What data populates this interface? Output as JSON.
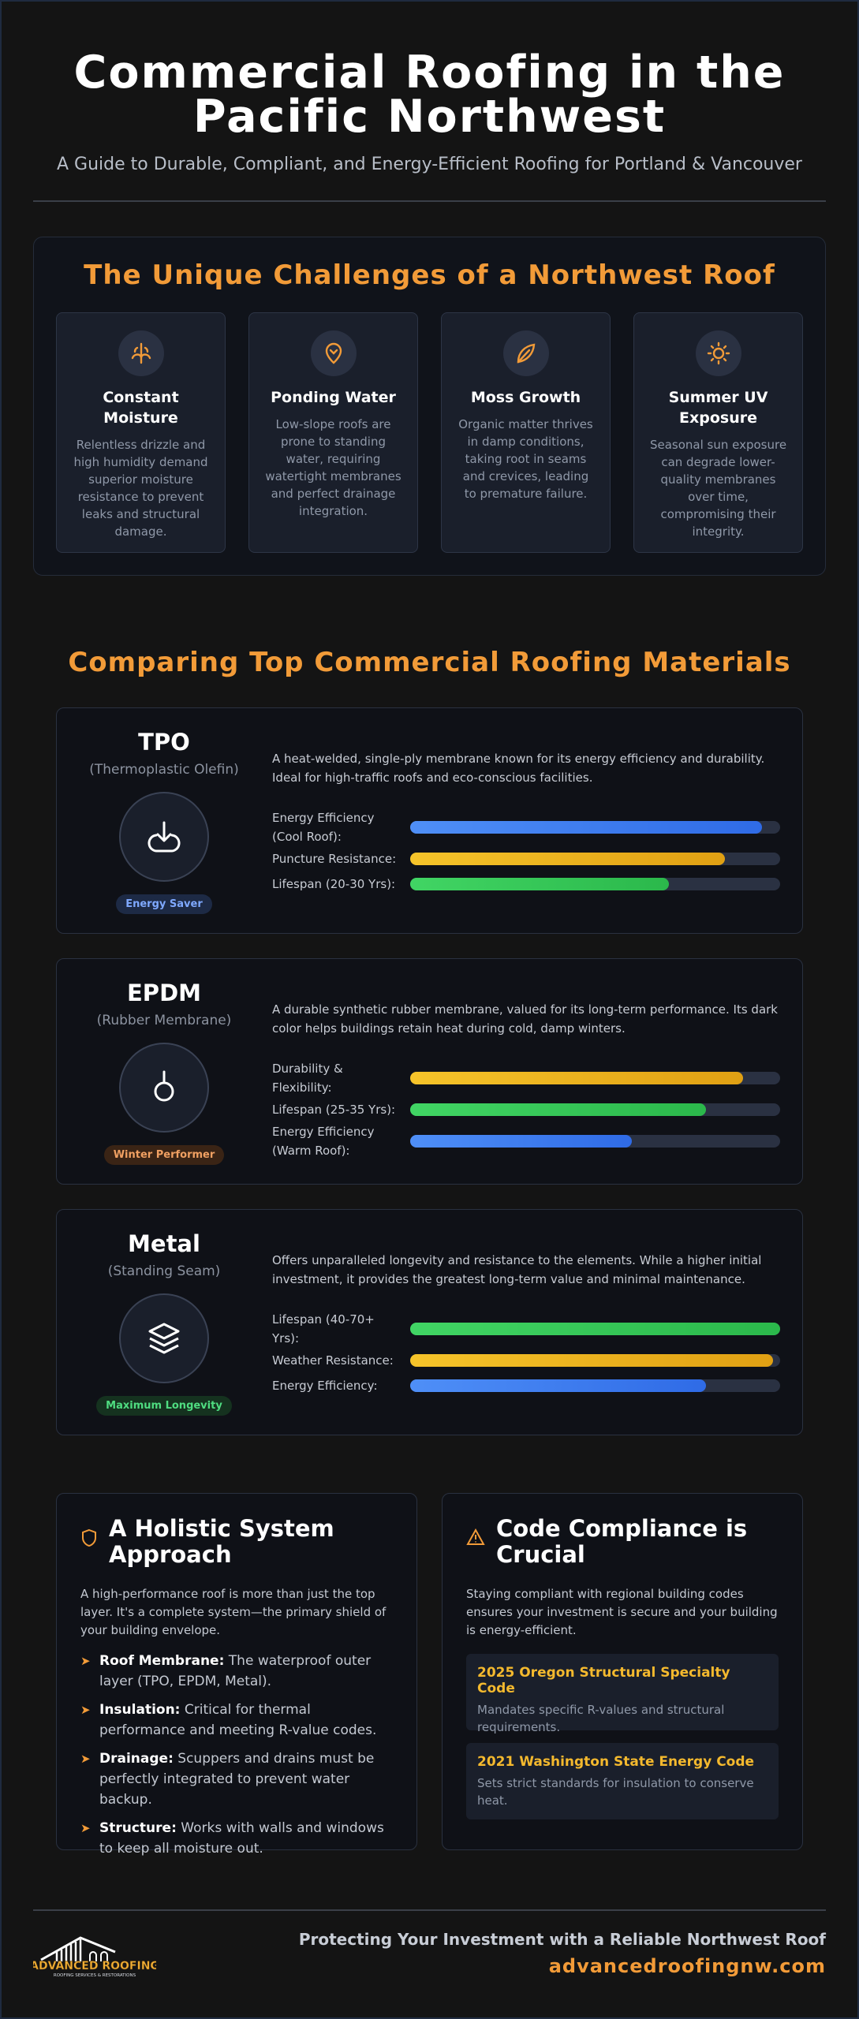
{
  "header": {
    "title": "Commercial Roofing in the Pacific Northwest",
    "subtitle": "A Guide to Durable, Compliant, and Energy-Efficient Roofing for Portland & Vancouver"
  },
  "challenges": {
    "heading": "The Unique Challenges of a Northwest Roof",
    "cards": [
      {
        "title": "Constant Moisture",
        "text": "Relentless drizzle and high humidity demand superior moisture resistance to prevent leaks and structural damage."
      },
      {
        "title": "Ponding Water",
        "text": "Low-slope roofs are prone to standing water, requiring watertight membranes and perfect drainage integration."
      },
      {
        "title": "Moss Growth",
        "text": "Organic matter thrives in damp conditions, taking root in seams and crevices, leading to premature failure."
      },
      {
        "title": "Summer UV Exposure",
        "text": "Seasonal sun exposure can degrade lower-quality membranes over time, compromising their integrity."
      }
    ]
  },
  "materials": {
    "heading": "Comparing Top Commercial Roofing Materials",
    "items": [
      {
        "name": "TPO",
        "subtitle": "(Thermoplastic Olefin)",
        "badge": "Energy Saver",
        "description": "A heat-welded, single-ply membrane known for its energy efficiency and durability. Ideal for high-traffic roofs and eco-conscious facilities.",
        "bars": [
          {
            "label": "Energy Efficiency (Cool Roof):",
            "value": 95,
            "color": "blue"
          },
          {
            "label": "Puncture Resistance:",
            "value": 85,
            "color": "yellow"
          },
          {
            "label": "Lifespan (20-30 Yrs):",
            "value": 70,
            "color": "green"
          }
        ]
      },
      {
        "name": "EPDM",
        "subtitle": "(Rubber Membrane)",
        "badge": "Winter Performer",
        "description": "A durable synthetic rubber membrane, valued for its long-term performance. Its dark color helps buildings retain heat during cold, damp winters.",
        "bars": [
          {
            "label": "Durability & Flexibility:",
            "value": 90,
            "color": "yellow"
          },
          {
            "label": "Lifespan (25-35 Yrs):",
            "value": 80,
            "color": "green"
          },
          {
            "label": "Energy Efficiency (Warm Roof):",
            "value": 60,
            "color": "blue"
          }
        ]
      },
      {
        "name": "Metal",
        "subtitle": "(Standing Seam)",
        "badge": "Maximum Longevity",
        "description": "Offers unparalleled longevity and resistance to the elements. While a higher initial investment, it provides the greatest long-term value and minimal maintenance.",
        "bars": [
          {
            "label": "Lifespan (40-70+ Yrs):",
            "value": 100,
            "color": "green"
          },
          {
            "label": "Weather Resistance:",
            "value": 98,
            "color": "yellow"
          },
          {
            "label": "Energy Efficiency:",
            "value": 80,
            "color": "blue"
          }
        ]
      }
    ]
  },
  "system": {
    "heading": "A Holistic System Approach",
    "intro": "A high-performance roof is more than just the top layer. It's a complete system—the primary shield of your building envelope.",
    "items": [
      {
        "term": "Roof Membrane:",
        "text": "The waterproof outer layer (TPO, EPDM, Metal)."
      },
      {
        "term": "Insulation:",
        "text": "Critical for thermal performance and meeting R-value codes."
      },
      {
        "term": "Drainage:",
        "text": "Scuppers and drains must be perfectly integrated to prevent water backup."
      },
      {
        "term": "Structure:",
        "text": "Works with walls and windows to keep all moisture out."
      }
    ]
  },
  "compliance": {
    "heading": "Code Compliance is Crucial",
    "intro": "Staying compliant with regional building codes ensures your investment is secure and your building is energy-efficient.",
    "codes": [
      {
        "title": "2025 Oregon Structural Specialty Code",
        "text": "Mandates specific R-values and structural requirements."
      },
      {
        "title": "2021 Washington State Energy Code",
        "text": "Sets strict standards for insulation to conserve heat."
      }
    ]
  },
  "footer": {
    "logo_name": "ADVANCED ROOFING",
    "logo_tagline": "ROOFING SERVICES & RESTORATIONS",
    "tagline": "Protecting Your Investment with a Reliable Northwest Roof",
    "url": "advancedroofingnw.com"
  }
}
